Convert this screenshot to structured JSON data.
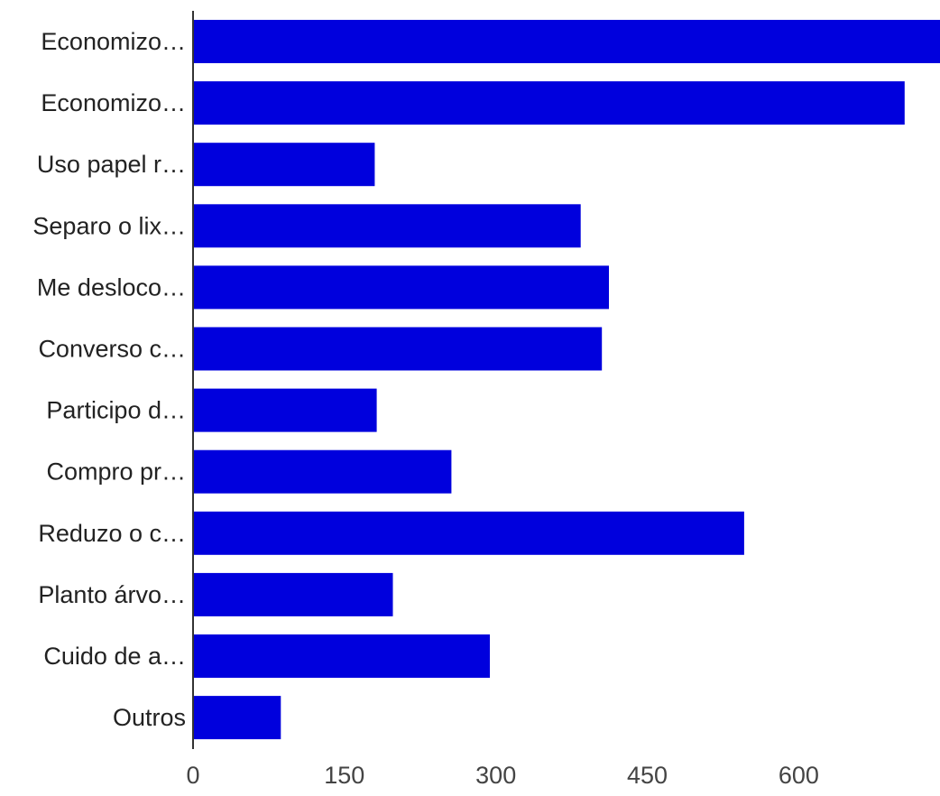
{
  "chart_data": {
    "type": "bar",
    "orientation": "horizontal",
    "categories": [
      "Economizo…",
      "Economizo…",
      "Uso papel r…",
      "Separo o lix…",
      "Me desloco…",
      "Converso c…",
      "Participo d…",
      "Compro pr…",
      "Reduzo o c…",
      "Planto árvo…",
      "Cuido de a…",
      "Outros"
    ],
    "values": [
      740,
      705,
      180,
      384,
      412,
      405,
      182,
      256,
      546,
      198,
      294,
      87
    ],
    "xlim": [
      0,
      740
    ],
    "xticks": [
      0,
      150,
      300,
      450,
      600
    ],
    "grid": false,
    "legend": "none",
    "bar_color": "#0000dd",
    "axis_color": "#333333"
  }
}
